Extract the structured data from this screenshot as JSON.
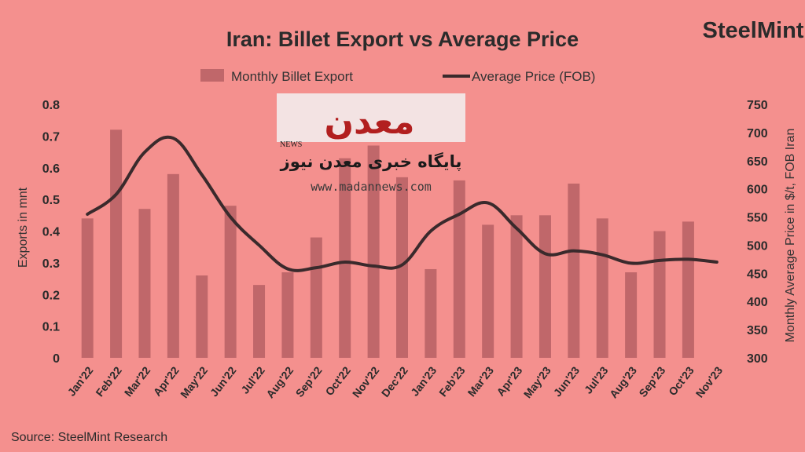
{
  "brand": "SteelMint",
  "source": "Source:  SteelMint  Research",
  "watermark": {
    "name_fa": "معدن",
    "news_label": "NEWS",
    "tagline_fa": "پایگاه خبری معدن نیوز",
    "url": "www.madannews.com"
  },
  "colors": {
    "background": "#f4908e",
    "bar": "#c0676a",
    "line": "#3a2a2c"
  },
  "chart_data": {
    "type": "bar",
    "title": "Iran: Billet Export vs Average Price",
    "categories": [
      "Jan'22",
      "Feb'22",
      "Mar'22",
      "Apr'22",
      "May'22",
      "Jun'22",
      "Jul'22",
      "Aug'22",
      "Sep'22",
      "Oct'22",
      "Nov'22",
      "Dec'22",
      "Jan'23",
      "Feb'23",
      "Mar'23",
      "Apr'23",
      "May'23",
      "Jun'23",
      "Jul'23",
      "Aug'23",
      "Sep'23",
      "Oct'23",
      "Nov'23"
    ],
    "series": [
      {
        "name": "Monthly Billet Export",
        "type": "bar",
        "axis": "left",
        "values": [
          0.44,
          0.72,
          0.47,
          0.58,
          0.26,
          0.48,
          0.23,
          0.27,
          0.38,
          0.63,
          0.67,
          0.57,
          0.28,
          0.56,
          0.42,
          0.45,
          0.45,
          0.55,
          0.44,
          0.27,
          0.4,
          0.43,
          null
        ]
      },
      {
        "name": "Average Price (FOB)",
        "type": "line",
        "axis": "right",
        "values": [
          555,
          590,
          665,
          690,
          625,
          550,
          500,
          458,
          460,
          470,
          463,
          465,
          525,
          555,
          575,
          530,
          485,
          490,
          483,
          468,
          473,
          475,
          470
        ]
      }
    ],
    "ylabel": "Exports in mnt",
    "y2label": "Monthly  Average  Price  in $/t, FOB Iran",
    "ylim": [
      0,
      0.8
    ],
    "y2lim": [
      300,
      750
    ],
    "yticks": [
      "0",
      "0.1",
      "0.2",
      "0.3",
      "0.4",
      "0.5",
      "0.6",
      "0.7",
      "0.8"
    ],
    "y2ticks": [
      "300",
      "350",
      "400",
      "450",
      "500",
      "550",
      "600",
      "650",
      "700",
      "750"
    ],
    "legend": "top-center",
    "grid": false
  }
}
